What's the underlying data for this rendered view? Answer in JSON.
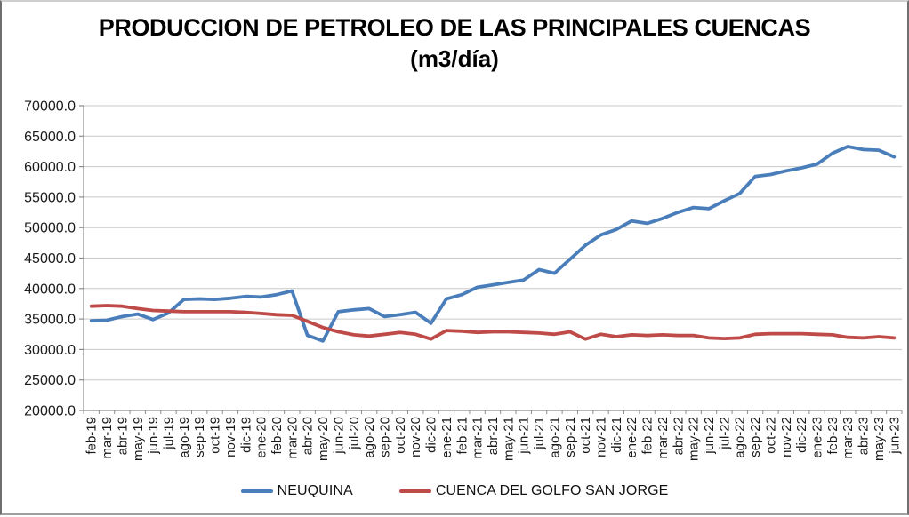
{
  "title": {
    "line1": "PRODUCCION DE PETROLEO DE LAS PRINCIPALES CUENCAS",
    "line2": "(m3/día)"
  },
  "chart_data": {
    "type": "line",
    "title": "PRODUCCION DE PETROLEO DE LAS PRINCIPALES CUENCAS (m3/día)",
    "xlabel": "",
    "ylabel": "",
    "ylim": [
      20000,
      70000
    ],
    "ytick_step": 5000,
    "ytick_labels": [
      "70000.0",
      "65000.0",
      "60000.0",
      "55000.0",
      "50000.0",
      "45000.0",
      "40000.0",
      "35000.0",
      "30000.0",
      "25000.0",
      "20000.0"
    ],
    "grid": "horizontal",
    "legend_position": "bottom",
    "grid_color": "#c9c9c9",
    "axis_color": "#8c8c8c",
    "tick_label_color": "#1a1a1a",
    "categories": [
      "feb-19",
      "mar-19",
      "abr-19",
      "may-19",
      "jun-19",
      "jul-19",
      "ago-19",
      "sep-19",
      "oct-19",
      "nov-19",
      "dic-19",
      "ene-20",
      "feb-20",
      "mar-20",
      "abr-20",
      "may-20",
      "jun-20",
      "jul-20",
      "ago-20",
      "sep-20",
      "oct-20",
      "nov-20",
      "dic-20",
      "ene-21",
      "feb-21",
      "mar-21",
      "abr-21",
      "may-21",
      "jun-21",
      "jul-21",
      "ago-21",
      "sep-21",
      "oct-21",
      "nov-21",
      "dic-21",
      "ene-22",
      "feb-22",
      "mar-22",
      "abr-22",
      "may-22",
      "jun-22",
      "jul-22",
      "ago-22",
      "sep-22",
      "oct-22",
      "nov-22",
      "dic-22",
      "ene-23",
      "feb-23",
      "mar-23",
      "abr-23",
      "may-23",
      "jun-23"
    ],
    "series": [
      {
        "name": "NEUQUINA",
        "color": "#4a7ebb",
        "values": [
          34700,
          34800,
          35400,
          35800,
          34900,
          36000,
          38200,
          38300,
          38200,
          38400,
          38700,
          38600,
          39000,
          39600,
          32300,
          31400,
          36200,
          36500,
          36700,
          35400,
          35700,
          36100,
          34300,
          38300,
          39000,
          40200,
          40600,
          41000,
          41400,
          43100,
          42500,
          44800,
          47100,
          48800,
          49700,
          51100,
          50700,
          51500,
          52500,
          53300,
          53100,
          54400,
          55600,
          58400,
          58700,
          59300,
          59800,
          60400,
          62200,
          63300,
          62800,
          62700,
          61600
        ]
      },
      {
        "name": "CUENCA DEL GOLFO SAN JORGE",
        "color": "#be4b48",
        "values": [
          37100,
          37200,
          37100,
          36700,
          36400,
          36300,
          36200,
          36200,
          36200,
          36200,
          36100,
          35900,
          35700,
          35600,
          34600,
          33600,
          32900,
          32400,
          32200,
          32500,
          32800,
          32500,
          31700,
          33100,
          33000,
          32800,
          32900,
          32900,
          32800,
          32700,
          32500,
          32900,
          31700,
          32500,
          32100,
          32400,
          32300,
          32400,
          32300,
          32300,
          31900,
          31800,
          31900,
          32500,
          32600,
          32600,
          32600,
          32500,
          32400,
          32000,
          31900,
          32100,
          31900
        ]
      }
    ]
  }
}
